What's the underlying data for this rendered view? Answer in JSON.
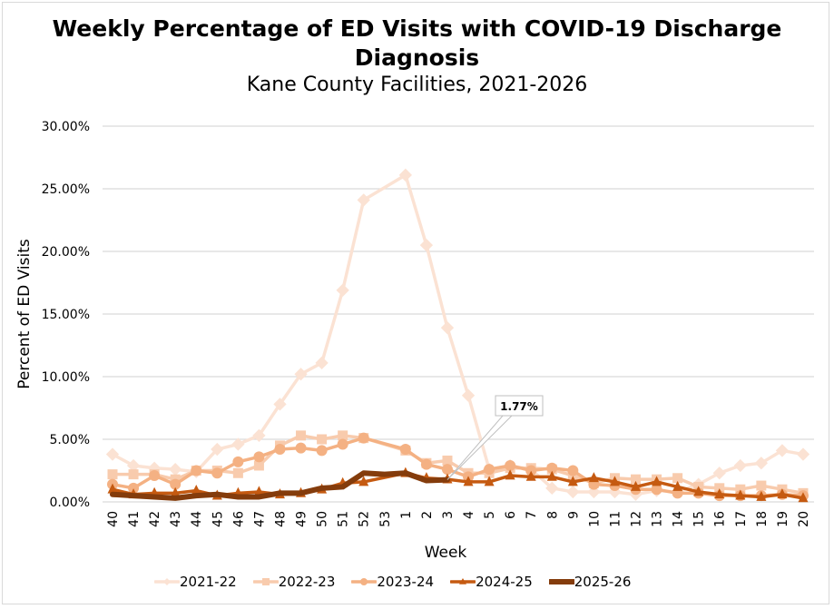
{
  "title": "Weekly Percentage of ED Visits with COVID-19 Discharge Diagnosis",
  "subtitle": "Kane County Facilities, 2021-2026",
  "chart_data": {
    "type": "line",
    "title": "Weekly Percentage of ED Visits with COVID-19 Discharge Diagnosis",
    "subtitle": "Kane County Facilities, 2021-2026",
    "xlabel": "Week",
    "ylabel": "Percent of ED Visits",
    "ylim": [
      0,
      30
    ],
    "yticks": [
      "0.00%",
      "5.00%",
      "10.00%",
      "15.00%",
      "20.00%",
      "25.00%",
      "30.00%"
    ],
    "ytick_values": [
      0,
      5,
      10,
      15,
      20,
      25,
      30
    ],
    "grid": true,
    "legend": "bottom",
    "categories": [
      "40",
      "41",
      "42",
      "43",
      "44",
      "45",
      "46",
      "47",
      "48",
      "49",
      "50",
      "51",
      "52",
      "53",
      "1",
      "2",
      "3",
      "4",
      "5",
      "6",
      "7",
      "8",
      "9",
      "10",
      "11",
      "12",
      "13",
      "14",
      "15",
      "16",
      "17",
      "18",
      "19",
      "20"
    ],
    "series": [
      {
        "name": "2021-22",
        "color": "#fbe2d3",
        "marker": "diamond",
        "values": [
          3.8,
          2.9,
          2.7,
          2.6,
          2.4,
          4.2,
          4.6,
          5.3,
          7.8,
          10.2,
          11.1,
          16.9,
          24.1,
          null,
          26.1,
          20.5,
          13.9,
          8.5,
          2.6,
          2.9,
          2.6,
          1.1,
          0.8,
          0.8,
          0.8,
          0.6,
          0.9,
          0.8,
          1.4,
          2.3,
          2.9,
          3.1,
          4.1,
          3.8
        ]
      },
      {
        "name": "2022-23",
        "color": "#f8cbad",
        "marker": "square",
        "values": [
          2.2,
          2.2,
          2.2,
          1.8,
          2.5,
          2.5,
          2.3,
          2.9,
          4.5,
          5.3,
          5.0,
          5.3,
          5.1,
          null,
          4.1,
          3.1,
          3.3,
          2.3,
          2.3,
          2.7,
          2.7,
          2.6,
          2.1,
          1.5,
          1.9,
          1.8,
          1.8,
          1.9,
          1.2,
          1.1,
          1.0,
          1.3,
          1.0,
          0.7
        ]
      },
      {
        "name": "2023-24",
        "color": "#f4b183",
        "marker": "circle",
        "values": [
          1.4,
          1.1,
          2.1,
          1.4,
          2.5,
          2.3,
          3.2,
          3.6,
          4.2,
          4.3,
          4.1,
          4.6,
          5.1,
          null,
          4.2,
          3.0,
          2.6,
          2.0,
          2.6,
          2.9,
          2.5,
          2.7,
          2.5,
          1.4,
          1.3,
          1.0,
          1.0,
          0.7,
          0.7,
          0.5,
          0.5,
          0.5,
          0.6,
          0.5
        ]
      },
      {
        "name": "2024-25",
        "color": "#c55a11",
        "marker": "triangle",
        "values": [
          1.0,
          0.6,
          0.7,
          0.7,
          0.9,
          0.5,
          0.7,
          0.8,
          0.6,
          0.7,
          1.0,
          1.5,
          1.6,
          null,
          2.3,
          1.9,
          1.8,
          1.6,
          1.6,
          2.1,
          2.0,
          2.0,
          1.6,
          1.9,
          1.6,
          1.2,
          1.6,
          1.2,
          0.8,
          0.6,
          0.5,
          0.4,
          0.6,
          0.3
        ]
      },
      {
        "name": "2025-26",
        "color": "#843c0c",
        "marker": "none",
        "values": [
          0.6,
          0.5,
          0.4,
          0.3,
          0.5,
          0.6,
          0.4,
          0.4,
          0.7,
          0.7,
          1.1,
          1.2,
          2.3,
          2.2,
          2.3,
          1.7,
          1.77,
          null,
          null,
          null,
          null,
          null,
          null,
          null,
          null,
          null,
          null,
          null,
          null,
          null,
          null,
          null,
          null,
          null
        ]
      }
    ],
    "annotations": [
      {
        "series": "2025-26",
        "category": "3",
        "text": "1.77%"
      }
    ]
  },
  "legend_items": [
    "2021-22",
    "2022-23",
    "2023-24",
    "2024-25",
    "2025-26"
  ]
}
